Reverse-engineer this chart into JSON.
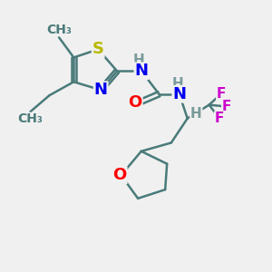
{
  "bg_color": "#f0f0f0",
  "bond_color": "#4a7a7a",
  "bond_width": 1.8,
  "atom_colors": {
    "S": "#b8b800",
    "N": "#0000ee",
    "O": "#ff0000",
    "F": "#cc00cc",
    "C": "#4a7a7a",
    "H": "#7a9a9a"
  },
  "font_size_atom": 13,
  "font_size_H": 11,
  "font_size_label": 10
}
